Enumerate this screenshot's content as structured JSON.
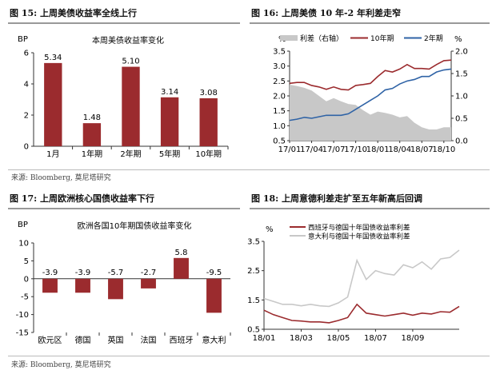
{
  "panels": {
    "fig15": {
      "title": "图 15:  上周美债收益率全线上行"
    },
    "fig16": {
      "title": "图 16:  上周美债 10 年-2 年利差走窄"
    },
    "fig17": {
      "title": "图 17:  上周欧洲核心国债收益率下行"
    },
    "fig18": {
      "title": "图 18:  上周意德利差走扩至五年新高后回调"
    }
  },
  "sources": {
    "top": "来源: Bloomberg, 莫尼塔研究",
    "bottom": "来源: Bloomberg, 莫尼塔研究"
  },
  "colors": {
    "bar": "#9b2b2e",
    "red_line": "#9b2b2e",
    "blue_line": "#2f63a6",
    "gray_area": "#c8c8c8",
    "light_line": "#c8c8c8"
  },
  "chart_data": [
    {
      "id": "fig15",
      "type": "bar",
      "title": "本周美债收益率变化",
      "ylabel": "BP",
      "categories": [
        "1月",
        "1年期",
        "2年期",
        "5年期",
        "10年期"
      ],
      "values": [
        5.34,
        1.48,
        5.1,
        3.14,
        3.08
      ],
      "labels": [
        "5.34",
        "1.48",
        "5.10",
        "3.14",
        "3.08"
      ],
      "ylim": [
        0,
        6
      ],
      "yticks": [
        "0",
        "2",
        "4",
        "6"
      ]
    },
    {
      "id": "fig16",
      "type": "line",
      "left_unit": "%",
      "right_unit": "%",
      "legend": [
        "利差（右轴）",
        "10年期",
        "2年期"
      ],
      "left_ylim": [
        0.5,
        3.5
      ],
      "left_ticks": [
        "0.5",
        "1.0",
        "1.5",
        "2.0",
        "2.5",
        "3.0",
        "3.5"
      ],
      "right_ylim": [
        0.0,
        2.0
      ],
      "right_ticks": [
        "0.0",
        "0.5",
        "1.0",
        "1.5",
        "2.0"
      ],
      "x_ticks": [
        "17/01",
        "17/04",
        "17/07",
        "17/10",
        "18/01",
        "18/04",
        "18/07",
        "18/10"
      ],
      "x_dates": [
        "2017-01",
        "2017-02",
        "2017-03",
        "2017-04",
        "2017-05",
        "2017-06",
        "2017-07",
        "2017-08",
        "2017-09",
        "2017-10",
        "2017-11",
        "2017-12",
        "2018-01",
        "2018-02",
        "2018-03",
        "2018-04",
        "2018-05",
        "2018-06",
        "2018-07",
        "2018-08",
        "2018-09",
        "2018-10",
        "2018-11"
      ],
      "series": [
        {
          "name": "10年期",
          "axis": "left",
          "values": [
            2.42,
            2.45,
            2.45,
            2.35,
            2.3,
            2.22,
            2.3,
            2.22,
            2.2,
            2.35,
            2.38,
            2.42,
            2.65,
            2.85,
            2.8,
            2.9,
            3.05,
            2.92,
            2.92,
            2.9,
            3.05,
            3.18,
            3.2
          ]
        },
        {
          "name": "2年期",
          "axis": "left",
          "values": [
            1.18,
            1.22,
            1.28,
            1.25,
            1.3,
            1.35,
            1.35,
            1.35,
            1.4,
            1.55,
            1.7,
            1.85,
            2.0,
            2.2,
            2.25,
            2.4,
            2.5,
            2.55,
            2.65,
            2.65,
            2.8,
            2.87,
            2.9
          ]
        },
        {
          "name": "利差（右轴）",
          "axis": "right",
          "values": [
            1.25,
            1.22,
            1.18,
            1.12,
            1.0,
            0.88,
            0.95,
            0.88,
            0.82,
            0.8,
            0.68,
            0.58,
            0.65,
            0.62,
            0.58,
            0.52,
            0.55,
            0.4,
            0.3,
            0.25,
            0.25,
            0.3,
            0.3
          ]
        }
      ]
    },
    {
      "id": "fig17",
      "type": "bar",
      "title": "欧洲各国10年期国债收益率变化",
      "ylabel": "BP",
      "categories": [
        "欧元区",
        "德国",
        "英国",
        "法国",
        "西班牙",
        "意大利"
      ],
      "values": [
        -3.9,
        -3.9,
        -5.7,
        -2.7,
        5.8,
        -9.5
      ],
      "labels": [
        "-3.9",
        "-3.9",
        "-5.7",
        "-2.7",
        "5.8",
        "-9.5"
      ],
      "ylim": [
        -15,
        10
      ],
      "yticks": [
        "10",
        "5",
        "0",
        "-5",
        "-10",
        "-15"
      ]
    },
    {
      "id": "fig18",
      "type": "line",
      "ylabel": "%",
      "legend": [
        "西班牙与德国十年国债收益率利差",
        "意大利与德国十年国债收益率利差"
      ],
      "ylim": [
        0.5,
        3.5
      ],
      "yticks": [
        "0.5",
        "1.5",
        "2.5",
        "3.5"
      ],
      "x_ticks": [
        "18/01",
        "18/03",
        "18/05",
        "18/07",
        "18/09"
      ],
      "x_dates": [
        "2018-01",
        "2018-01-15",
        "2018-02",
        "2018-02-15",
        "2018-03",
        "2018-03-15",
        "2018-04",
        "2018-04-15",
        "2018-05",
        "2018-05-15",
        "2018-05-29",
        "2018-06",
        "2018-06-15",
        "2018-07",
        "2018-07-15",
        "2018-08",
        "2018-08-15",
        "2018-09",
        "2018-09-15",
        "2018-10",
        "2018-10-15",
        "2018-10-25"
      ],
      "series": [
        {
          "name": "西班牙与德国十年国债收益率利差",
          "values": [
            1.15,
            1.0,
            0.9,
            0.8,
            0.78,
            0.75,
            0.75,
            0.72,
            0.8,
            0.9,
            1.35,
            1.05,
            1.0,
            0.95,
            1.0,
            1.05,
            0.98,
            1.05,
            1.02,
            1.1,
            1.08,
            1.28
          ]
        },
        {
          "name": "意大利与德国十年国债收益率利差",
          "values": [
            1.55,
            1.45,
            1.35,
            1.35,
            1.3,
            1.35,
            1.3,
            1.28,
            1.4,
            1.6,
            2.85,
            2.2,
            2.5,
            2.4,
            2.35,
            2.7,
            2.6,
            2.8,
            2.55,
            2.9,
            2.95,
            3.2
          ]
        }
      ]
    }
  ]
}
